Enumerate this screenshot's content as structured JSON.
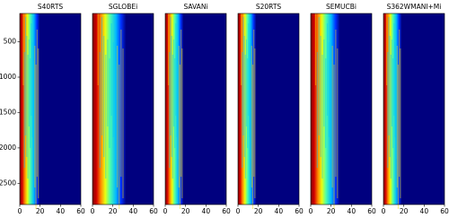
{
  "chart_data": [
    {
      "type": "heatmap",
      "title": "S40RTS",
      "xlim": [
        0,
        60
      ],
      "xticks": [
        0,
        20,
        40,
        60
      ],
      "ylim": [
        2800,
        100
      ],
      "yticks": [
        500,
        1000,
        1500,
        2000,
        2500
      ]
    },
    {
      "type": "heatmap",
      "title": "SGLOBEi",
      "xlim": [
        0,
        60
      ],
      "xticks": [
        0,
        20,
        40,
        60
      ],
      "ylim": [
        2800,
        100
      ]
    },
    {
      "type": "heatmap",
      "title": "SAVANi",
      "xlim": [
        0,
        60
      ],
      "xticks": [
        0,
        20,
        40,
        60
      ],
      "ylim": [
        2800,
        100
      ]
    },
    {
      "type": "heatmap",
      "title": "S20RTS",
      "xlim": [
        0,
        60
      ],
      "xticks": [
        0,
        20,
        40,
        60
      ],
      "ylim": [
        2800,
        100
      ]
    },
    {
      "type": "heatmap",
      "title": "SEMUCBi",
      "xlim": [
        0,
        60
      ],
      "xticks": [
        0,
        20,
        40,
        60
      ],
      "ylim": [
        2800,
        100
      ]
    },
    {
      "type": "heatmap",
      "title": "S362WMANI+Mi",
      "xlim": [
        0,
        60
      ],
      "xticks": [
        0,
        20,
        40,
        60
      ],
      "ylim": [
        2800,
        100
      ]
    }
  ]
}
